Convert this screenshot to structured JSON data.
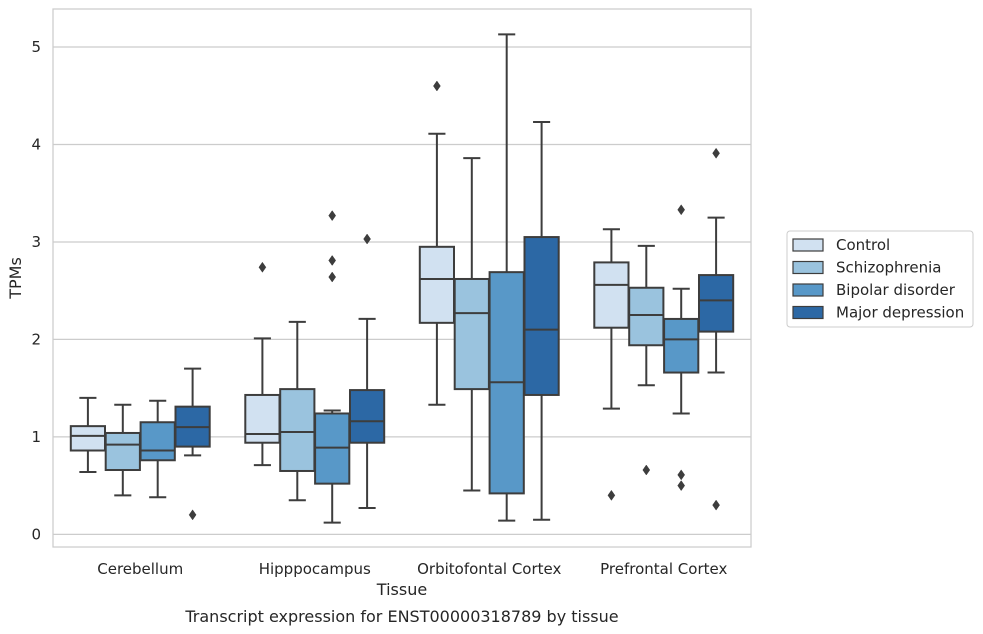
{
  "chart_data": {
    "type": "box",
    "title": "",
    "caption": "Transcript expression for ENST00000318789 by tissue",
    "xlabel": "Tissue",
    "ylabel": "TPMs",
    "ylim": [
      -0.13,
      5.39
    ],
    "yticks": [
      0,
      1,
      2,
      3,
      4,
      5
    ],
    "grid": "horizontal",
    "legend_position": "right",
    "categories": [
      "Cerebellum",
      "Hipppocampus",
      "Orbitofontal Cortex",
      "Prefrontal Cortex"
    ],
    "series": [
      {
        "name": "Control",
        "color": "#d1e1f1",
        "boxes": [
          {
            "whislo": 0.64,
            "q1": 0.86,
            "med": 1.01,
            "q3": 1.11,
            "whishi": 1.4,
            "fliers": []
          },
          {
            "whislo": 0.71,
            "q1": 0.94,
            "med": 1.03,
            "q3": 1.43,
            "whishi": 2.01,
            "fliers": [
              2.74
            ]
          },
          {
            "whislo": 1.33,
            "q1": 2.17,
            "med": 2.62,
            "q3": 2.95,
            "whishi": 4.11,
            "fliers": [
              4.6
            ]
          },
          {
            "whislo": 1.29,
            "q1": 2.12,
            "med": 2.56,
            "q3": 2.79,
            "whishi": 3.13,
            "fliers": [
              0.4
            ]
          }
        ]
      },
      {
        "name": "Schizophrenia",
        "color": "#9ac3de",
        "boxes": [
          {
            "whislo": 0.4,
            "q1": 0.66,
            "med": 0.92,
            "q3": 1.04,
            "whishi": 1.33,
            "fliers": []
          },
          {
            "whislo": 0.35,
            "q1": 0.65,
            "med": 1.05,
            "q3": 1.49,
            "whishi": 2.18,
            "fliers": []
          },
          {
            "whislo": 0.45,
            "q1": 1.49,
            "med": 2.27,
            "q3": 2.62,
            "whishi": 3.86,
            "fliers": []
          },
          {
            "whislo": 1.53,
            "q1": 1.94,
            "med": 2.25,
            "q3": 2.53,
            "whishi": 2.96,
            "fliers": [
              0.66
            ]
          }
        ]
      },
      {
        "name": "Bipolar disorder",
        "color": "#5898c8",
        "boxes": [
          {
            "whislo": 0.38,
            "q1": 0.76,
            "med": 0.86,
            "q3": 1.15,
            "whishi": 1.37,
            "fliers": []
          },
          {
            "whislo": 0.12,
            "q1": 0.52,
            "med": 0.89,
            "q3": 1.24,
            "whishi": 1.27,
            "fliers": [
              3.27,
              2.81,
              2.64
            ]
          },
          {
            "whislo": 0.14,
            "q1": 0.42,
            "med": 1.56,
            "q3": 2.69,
            "whishi": 5.13,
            "fliers": []
          },
          {
            "whislo": 1.24,
            "q1": 1.66,
            "med": 2.0,
            "q3": 2.21,
            "whishi": 2.52,
            "fliers": [
              3.33,
              0.61,
              0.5
            ]
          }
        ]
      },
      {
        "name": "Major depression",
        "color": "#2c68a5",
        "boxes": [
          {
            "whislo": 0.81,
            "q1": 0.9,
            "med": 1.1,
            "q3": 1.31,
            "whishi": 1.7,
            "fliers": [
              0.2
            ]
          },
          {
            "whislo": 0.27,
            "q1": 0.94,
            "med": 1.16,
            "q3": 1.48,
            "whishi": 2.21,
            "fliers": [
              3.03
            ]
          },
          {
            "whislo": 0.15,
            "q1": 1.43,
            "med": 2.1,
            "q3": 3.05,
            "whishi": 4.23,
            "fliers": []
          },
          {
            "whislo": 1.66,
            "q1": 2.08,
            "med": 2.4,
            "q3": 2.66,
            "whishi": 3.25,
            "fliers": [
              3.91,
              0.3
            ]
          }
        ]
      }
    ]
  }
}
